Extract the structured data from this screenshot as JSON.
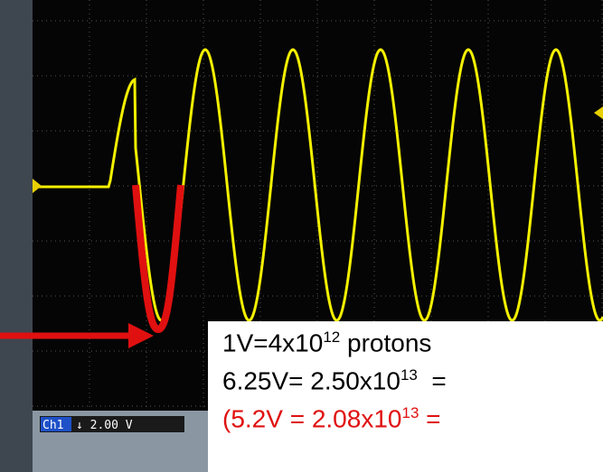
{
  "channel": {
    "label": "Ch1",
    "scale": "↓ 2.00 V"
  },
  "annotation": {
    "lines": [
      {
        "text": "1V=4x10",
        "sup": "12",
        "tail": " protons"
      },
      {
        "text": "6.25V= 2.50x10",
        "sup": "13",
        "tail": "  ="
      },
      {
        "text": "(5.2V = 2.08x10",
        "sup": "13",
        "tail": " ="
      }
    ]
  }
}
